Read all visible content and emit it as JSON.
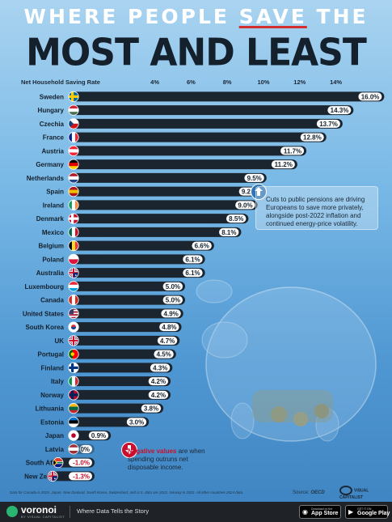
{
  "title": {
    "line1_pre": "WHERE PEOPLE ",
    "line1_highlight": "SAVE",
    "line1_post": " THE",
    "line2": "MOST AND LEAST"
  },
  "chart_data": {
    "type": "bar",
    "orientation": "horizontal",
    "xlabel": "Net Household Saving Rate",
    "xticks": [
      "4%",
      "6%",
      "8%",
      "10%",
      "12%",
      "14%"
    ],
    "xtick_values": [
      4,
      6,
      8,
      10,
      12,
      14
    ],
    "xlim": [
      -1.3,
      16.0
    ],
    "value_suffix": "%",
    "categories": [
      "Sweden",
      "Hungary",
      "Czechia",
      "France",
      "Austria",
      "Germany",
      "Netherlands",
      "Spain",
      "Ireland",
      "Denmark",
      "Mexico",
      "Belgium",
      "Poland",
      "Australia",
      "Luxembourg",
      "Canada",
      "United States",
      "South Korea",
      "UK",
      "Portugal",
      "Finland",
      "Italy",
      "Norway",
      "Lithuania",
      "Estonia",
      "Japan",
      "Latvia",
      "South Africa",
      "New Zealand"
    ],
    "values": [
      16.0,
      14.3,
      13.7,
      12.8,
      11.7,
      11.2,
      9.5,
      9.2,
      9.0,
      8.5,
      8.1,
      6.6,
      6.1,
      6.1,
      5.0,
      5.0,
      4.9,
      4.8,
      4.7,
      4.5,
      4.3,
      4.2,
      4.2,
      3.8,
      3.0,
      0.9,
      0,
      -1.0,
      -1.3
    ],
    "labels": [
      "16.0%",
      "14.3%",
      "13.7%",
      "12.8%",
      "11.7%",
      "11.2%",
      "9.5%",
      "9.2%",
      "9.0%",
      "8.5%",
      "8.1%",
      "6.6%",
      "6.1%",
      "6.1%",
      "5.0%",
      "5.0%",
      "4.9%",
      "4.8%",
      "4.7%",
      "4.5%",
      "4.3%",
      "4.2%",
      "4.2%",
      "3.8%",
      "3.0%",
      "0.9%",
      "0%",
      "-1.0%",
      "-1.3%"
    ],
    "flags": [
      {
        "type": "nordic",
        "bg": "#006aa7",
        "cross": "#fecc00"
      },
      {
        "type": "h",
        "colors": [
          "#ce2939",
          "#ffffff",
          "#477050"
        ]
      },
      {
        "type": "czech"
      },
      {
        "type": "v",
        "colors": [
          "#002395",
          "#ffffff",
          "#ed2939"
        ]
      },
      {
        "type": "h",
        "colors": [
          "#ed2939",
          "#ffffff",
          "#ed2939"
        ]
      },
      {
        "type": "h",
        "colors": [
          "#000000",
          "#dd0000",
          "#ffce00"
        ]
      },
      {
        "type": "h",
        "colors": [
          "#ae1c28",
          "#ffffff",
          "#21468b"
        ]
      },
      {
        "type": "h",
        "colors": [
          "#aa151b",
          "#f1bf00",
          "#aa151b"
        ]
      },
      {
        "type": "v",
        "colors": [
          "#169b62",
          "#ffffff",
          "#ff883e"
        ]
      },
      {
        "type": "nordic",
        "bg": "#c8102e",
        "cross": "#ffffff"
      },
      {
        "type": "v",
        "colors": [
          "#006847",
          "#ffffff",
          "#ce1126"
        ]
      },
      {
        "type": "v",
        "colors": [
          "#000000",
          "#fdda24",
          "#ef3340"
        ]
      },
      {
        "type": "h",
        "colors": [
          "#ffffff",
          "#dc143c"
        ]
      },
      {
        "type": "union_like",
        "bg": "#00247d"
      },
      {
        "type": "h",
        "colors": [
          "#ed2939",
          "#ffffff",
          "#00a1de"
        ]
      },
      {
        "type": "v",
        "colors": [
          "#d52b1e",
          "#ffffff",
          "#d52b1e"
        ]
      },
      {
        "type": "us"
      },
      {
        "type": "korea"
      },
      {
        "type": "uk"
      },
      {
        "type": "v2",
        "colors": [
          "#006600",
          "#ff0000"
        ]
      },
      {
        "type": "nordic",
        "bg": "#ffffff",
        "cross": "#003580"
      },
      {
        "type": "v",
        "colors": [
          "#009246",
          "#ffffff",
          "#ce2b37"
        ]
      },
      {
        "type": "nordic",
        "bg": "#ba0c2f",
        "cross": "#00205b"
      },
      {
        "type": "h",
        "colors": [
          "#fdb913",
          "#006a44",
          "#c1272d"
        ]
      },
      {
        "type": "h",
        "colors": [
          "#0072ce",
          "#000000",
          "#ffffff"
        ]
      },
      {
        "type": "japan"
      },
      {
        "type": "h",
        "colors": [
          "#9e3039",
          "#ffffff",
          "#9e3039"
        ]
      },
      {
        "type": "sa"
      },
      {
        "type": "union_like",
        "bg": "#00247d"
      }
    ]
  },
  "notes": {
    "positive": "Cuts to public pensions are driving Europeans to save more privately, alongside post-2022 inflation and continued energy-price volatility.",
    "negative_highlight": "Negative values",
    "negative_rest": " are when spending outruns net disposable income."
  },
  "footnote": "Data for Canada is 2025. Japan, New Zealand, South Korea, Switzerland, and U.S. data are 2023. Norway is 2022. All other countries 2024 data.",
  "source_label": "Source: ",
  "source_value": "OECD",
  "vc_logo": "VISUAL CAPITALIST",
  "footer": {
    "brand": "voronoi",
    "brand_sub": "BY VISUAL CAPITALIST",
    "tagline": "Where Data Tells the Story",
    "apple_small": "Download on the",
    "apple_big": "App Store",
    "google_small": "GET IT ON",
    "google_big": "Google Play"
  },
  "colors": {
    "bar": "#1b2530",
    "label_pill": "#ffffff",
    "title_dark": "#14202c",
    "accent_red": "#c8102e"
  }
}
